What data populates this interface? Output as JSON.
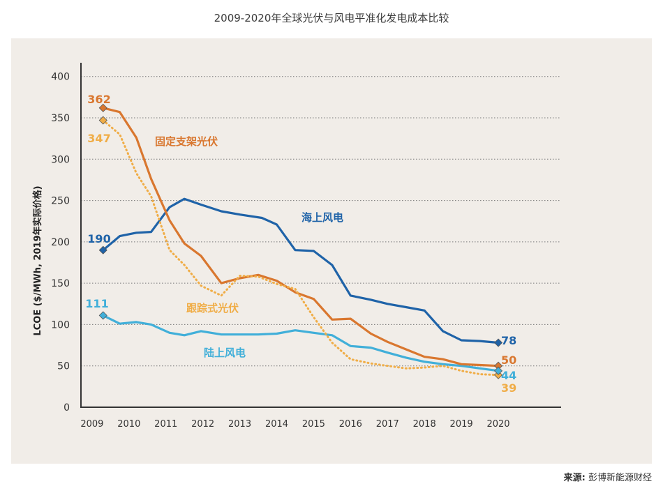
{
  "title": "2009-2020年全球光伏与风电平准化发电成本比较",
  "source": {
    "label": "来源:",
    "text": "彭博新能源财经"
  },
  "colors": {
    "panel": "#f1ede8",
    "axis": "#333333",
    "grid": "#777777",
    "offshore": "#1f63a8",
    "fixed": "#d9772f",
    "tracking": "#f0ad47",
    "onshore": "#41afd9"
  },
  "chart_data": {
    "type": "line",
    "title": "2009-2020年全球光伏与风电平准化发电成本比较",
    "xlabel": "",
    "ylabel": "LCOE ($/MWh, 2019年实际价格)",
    "ylim": [
      0,
      420
    ],
    "xlim": [
      2008.7,
      2021.7
    ],
    "yticks": [
      0,
      50,
      100,
      150,
      200,
      250,
      300,
      350,
      400
    ],
    "xticks": [
      2009,
      2010,
      2011,
      2012,
      2013,
      2014,
      2015,
      2016,
      2017,
      2018,
      2019,
      2020
    ],
    "grid": "horizontal dotted",
    "series": [
      {
        "name": "海上风电",
        "key": "offshore",
        "style": "solid",
        "start_label": "190",
        "end_label": "78",
        "x": [
          2009.3,
          2009.75,
          2010.2,
          2010.6,
          2011.1,
          2011.5,
          2011.95,
          2012.5,
          2013.0,
          2013.6,
          2014.0,
          2014.5,
          2015.0,
          2015.5,
          2016.0,
          2016.55,
          2017.0,
          2017.5,
          2018.0,
          2018.5,
          2019.0,
          2019.5,
          2020.0
        ],
        "y": [
          190,
          207,
          211,
          212,
          242,
          252,
          245,
          237,
          233,
          229,
          221,
          190,
          189,
          172,
          135,
          130,
          125,
          121,
          117,
          92,
          81,
          80,
          78
        ]
      },
      {
        "name": "固定支架光伏",
        "key": "fixed",
        "style": "solid",
        "start_label": "362",
        "end_label": "50",
        "x": [
          2009.3,
          2009.75,
          2010.2,
          2010.6,
          2011.1,
          2011.5,
          2011.95,
          2012.5,
          2013.0,
          2013.5,
          2014.0,
          2014.5,
          2015.0,
          2015.5,
          2016.0,
          2016.55,
          2017.0,
          2017.5,
          2018.0,
          2018.5,
          2019.0,
          2019.5,
          2020.0
        ],
        "y": [
          362,
          357,
          326,
          276,
          226,
          198,
          183,
          150,
          156,
          160,
          153,
          139,
          131,
          106,
          107,
          89,
          79,
          70,
          61,
          58,
          52,
          51,
          50
        ]
      },
      {
        "name": "跟踪式光伏",
        "key": "tracking",
        "style": "dotted",
        "start_label": "347",
        "end_label": "39",
        "x": [
          2009.3,
          2009.75,
          2010.2,
          2010.6,
          2011.1,
          2011.5,
          2011.95,
          2012.5,
          2013.0,
          2013.5,
          2014.0,
          2014.5,
          2015.0,
          2015.5,
          2016.0,
          2016.55,
          2017.0,
          2017.5,
          2018.0,
          2018.5,
          2019.0,
          2019.5,
          2020.0
        ],
        "y": [
          347,
          330,
          283,
          255,
          190,
          172,
          147,
          135,
          159,
          158,
          149,
          143,
          109,
          78,
          58,
          53,
          50,
          47,
          48,
          50,
          44,
          40,
          39
        ]
      },
      {
        "name": "陆上风电",
        "key": "onshore",
        "style": "solid",
        "start_label": "111",
        "end_label": "44",
        "x": [
          2009.3,
          2009.75,
          2010.2,
          2010.6,
          2011.1,
          2011.5,
          2011.95,
          2012.5,
          2013.0,
          2013.5,
          2014.0,
          2014.5,
          2015.0,
          2015.5,
          2016.0,
          2016.55,
          2017.0,
          2017.5,
          2018.0,
          2018.5,
          2019.0,
          2019.5,
          2020.0
        ],
        "y": [
          111,
          101,
          103,
          100,
          90,
          87,
          92,
          88,
          88,
          88,
          89,
          93,
          90,
          87,
          74,
          72,
          66,
          60,
          55,
          52,
          50,
          47,
          44
        ]
      }
    ],
    "series_labels": [
      {
        "key": "offshore",
        "text": "海上风电"
      },
      {
        "key": "fixed",
        "text": "固定支架光伏"
      },
      {
        "key": "tracking",
        "text": "跟踪式光伏"
      },
      {
        "key": "onshore",
        "text": "陆上风电"
      }
    ]
  }
}
